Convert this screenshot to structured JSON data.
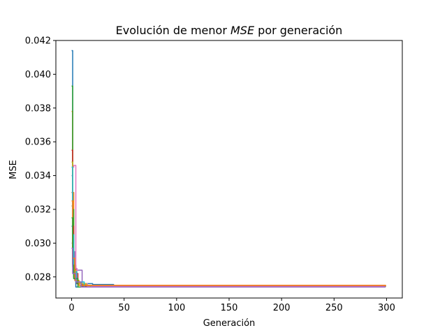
{
  "chart_data": {
    "type": "line",
    "title": "Evolución de menor MSE por generación",
    "title_parts": [
      "Evolución de menor ",
      "MSE",
      " por generación"
    ],
    "xlabel": "Generación",
    "ylabel": "MSE",
    "xlim": [
      -15,
      315
    ],
    "ylim": [
      0.02675,
      0.042
    ],
    "xticks": [
      0,
      50,
      100,
      150,
      200,
      250,
      300
    ],
    "yticks": [
      0.028,
      0.03,
      0.032,
      0.034,
      0.036,
      0.038,
      0.04,
      0.042
    ],
    "ytick_labels": [
      "0.028",
      "0.030",
      "0.032",
      "0.034",
      "0.036",
      "0.038",
      "0.040",
      "0.042"
    ],
    "grid": false,
    "series": [
      {
        "color": "#1f77b4",
        "x": [
          0,
          1,
          2,
          3,
          5,
          8,
          15,
          20,
          38,
          40,
          299
        ],
        "y": [
          0.0414,
          0.03,
          0.0282,
          0.0278,
          0.0277,
          0.0276,
          0.0276,
          0.02755,
          0.02755,
          0.02745,
          0.02745
        ]
      },
      {
        "color": "#ff7f0e",
        "x": [
          0,
          1,
          2,
          3,
          5,
          10,
          15,
          20,
          299
        ],
        "y": [
          0.0378,
          0.033,
          0.029,
          0.0281,
          0.0276,
          0.02755,
          0.0275,
          0.0274,
          0.0274
        ]
      },
      {
        "color": "#2ca02c",
        "x": [
          0,
          1,
          2,
          4,
          8,
          12,
          299
        ],
        "y": [
          0.0393,
          0.032,
          0.0285,
          0.0277,
          0.0276,
          0.02745,
          0.02745
        ]
      },
      {
        "color": "#d62728",
        "x": [
          0,
          1,
          2,
          3,
          4,
          6,
          10,
          299
        ],
        "y": [
          0.0355,
          0.031,
          0.0288,
          0.0287,
          0.0282,
          0.0276,
          0.02745,
          0.02745
        ]
      },
      {
        "color": "#9467bd",
        "x": [
          0,
          1,
          3,
          5,
          7,
          9,
          10,
          12,
          299
        ],
        "y": [
          0.034,
          0.0295,
          0.0285,
          0.0284,
          0.0284,
          0.0284,
          0.0276,
          0.0275,
          0.02745
        ]
      },
      {
        "color": "#8c564b",
        "x": [
          0,
          1,
          2,
          5,
          10,
          299
        ],
        "y": [
          0.033,
          0.029,
          0.028,
          0.0276,
          0.02745,
          0.02745
        ]
      },
      {
        "color": "#e377c2",
        "x": [
          0,
          1,
          2,
          3,
          4,
          5,
          8,
          15,
          299
        ],
        "y": [
          0.03,
          0.0345,
          0.0346,
          0.0346,
          0.0285,
          0.0277,
          0.0276,
          0.02745,
          0.02745
        ]
      },
      {
        "color": "#7f7f7f",
        "x": [
          0,
          1,
          3,
          6,
          299
        ],
        "y": [
          0.0322,
          0.0288,
          0.0279,
          0.0275,
          0.0274
        ]
      },
      {
        "color": "#bcbd22",
        "x": [
          0,
          1,
          2,
          4,
          8,
          14,
          18,
          299
        ],
        "y": [
          0.0348,
          0.03,
          0.0284,
          0.0277,
          0.0276,
          0.0275,
          0.0274,
          0.0274
        ]
      },
      {
        "color": "#17becf",
        "x": [
          0,
          1,
          2,
          5,
          12,
          299
        ],
        "y": [
          0.0345,
          0.0305,
          0.0283,
          0.0277,
          0.0274,
          0.0274
        ]
      },
      {
        "color": "#1f77b4",
        "x": [
          0,
          1,
          2,
          4,
          299
        ],
        "y": [
          0.031,
          0.0286,
          0.0279,
          0.0274,
          0.0274
        ]
      },
      {
        "color": "#ff7f0e",
        "x": [
          0,
          1,
          3,
          7,
          299
        ],
        "y": [
          0.0325,
          0.0291,
          0.0278,
          0.0275,
          0.02745
        ]
      },
      {
        "color": "#2ca02c",
        "x": [
          0,
          1,
          2,
          6,
          299
        ],
        "y": [
          0.0315,
          0.0287,
          0.0279,
          0.0274,
          0.0274
        ]
      },
      {
        "color": "#9467bd",
        "x": [
          0,
          1,
          4,
          9,
          299
        ],
        "y": [
          0.0297,
          0.0282,
          0.0277,
          0.0274,
          0.0274
        ]
      }
    ]
  }
}
